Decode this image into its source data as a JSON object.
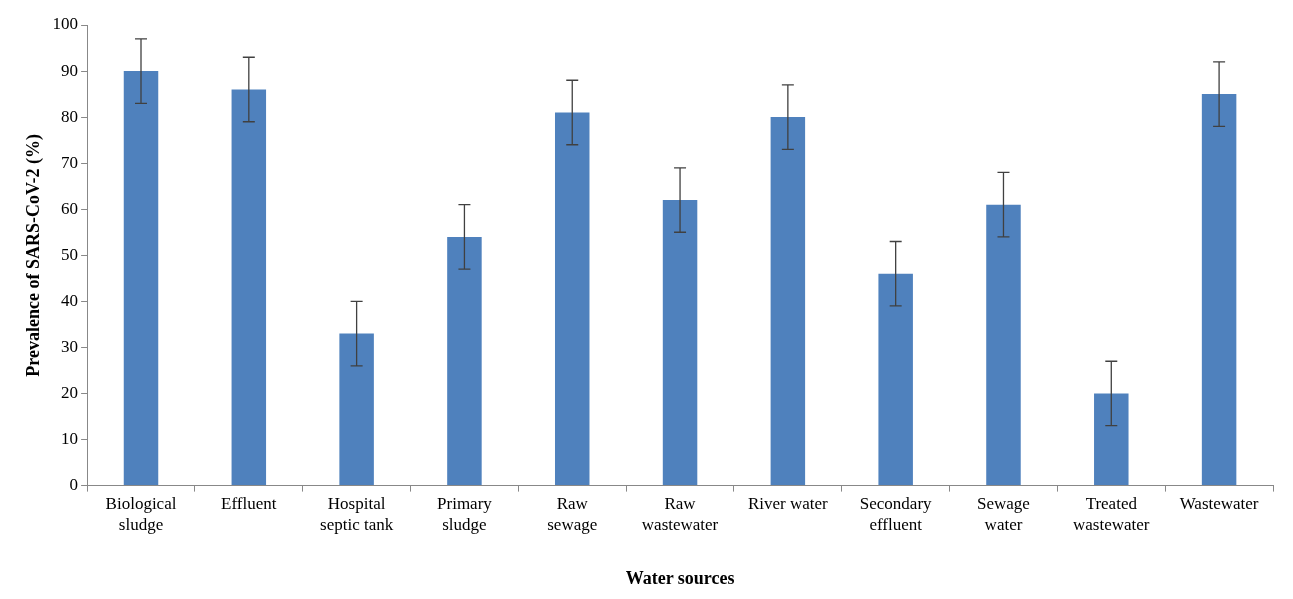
{
  "chart_data": {
    "type": "bar",
    "xlabel": "Water sources",
    "ylabel": "Prevalence of SARS-CoV-2 (%)",
    "categories": [
      "Biological\nsludge",
      "Effluent",
      "Hospital\nseptic tank",
      "Primary\nsludge",
      "Raw\nsewage",
      "Raw\nwastewater",
      "River water",
      "Secondary\neffluent",
      "Sewage\nwater",
      "Treated\nwastewater",
      "Wastewater"
    ],
    "values": [
      90,
      86,
      33,
      54,
      81,
      62,
      80,
      46,
      61,
      20,
      85
    ],
    "errors": [
      7,
      7,
      7,
      7,
      7,
      7,
      7,
      7,
      7,
      7,
      7
    ],
    "color": "#4f81bd",
    "ylim": [
      0,
      100
    ],
    "yticks": [
      0,
      10,
      20,
      30,
      40,
      50,
      60,
      70,
      80,
      90,
      100
    ],
    "grid": false,
    "legend": false
  }
}
